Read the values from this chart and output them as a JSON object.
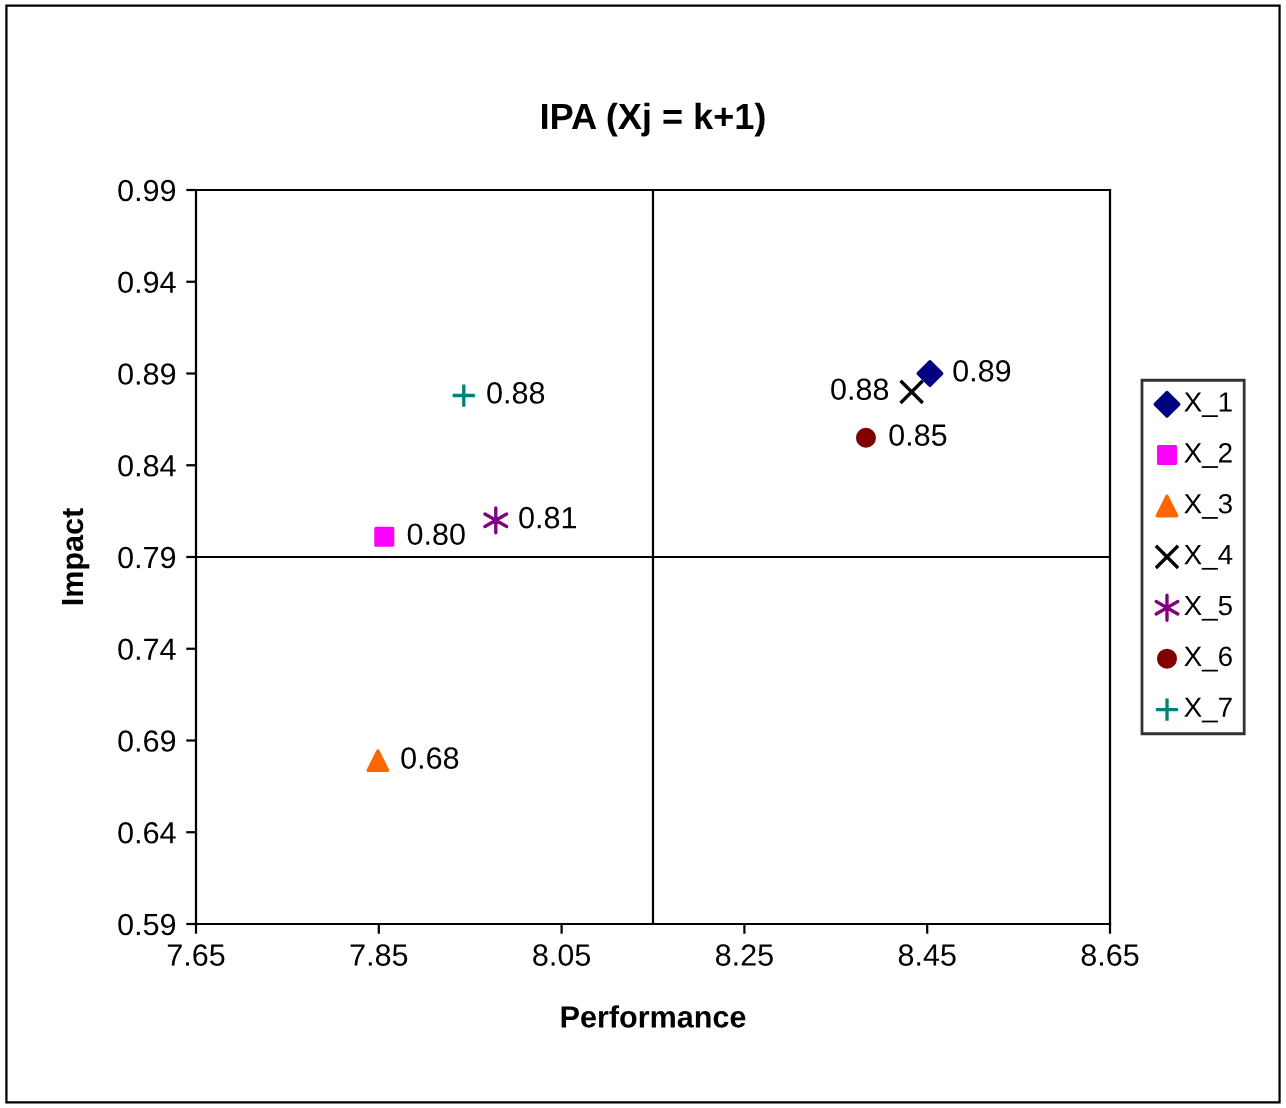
{
  "chart_data": {
    "type": "scatter",
    "title": "IPA (Xj = k+1)",
    "xlabel": "Performance",
    "ylabel": "Impact",
    "xlim": [
      7.65,
      8.65
    ],
    "xticks": [
      7.65,
      7.85,
      8.05,
      8.25,
      8.45,
      8.65
    ],
    "ylim": [
      0.59,
      0.99
    ],
    "yticks": [
      0.59,
      0.64,
      0.69,
      0.74,
      0.79,
      0.84,
      0.89,
      0.94,
      0.99
    ],
    "grid": false,
    "legend": "right",
    "ref_lines": [
      {
        "axis": "x",
        "value": 8.15,
        "color": "#000000"
      },
      {
        "axis": "y",
        "value": 0.79,
        "color": "#000000"
      }
    ],
    "series": [
      {
        "name": "X_1",
        "color": "#000080",
        "marker": "diamond",
        "x": [
          8.453
        ],
        "values": [
          0.89
        ],
        "value_labels": [
          "0.89"
        ]
      },
      {
        "name": "X_2",
        "color": "#ff00ff",
        "marker": "square",
        "x": [
          7.856
        ],
        "values": [
          0.801
        ],
        "value_labels": [
          "0.80"
        ]
      },
      {
        "name": "X_3",
        "color": "#ff6600",
        "marker": "triangle",
        "x": [
          7.849
        ],
        "values": [
          0.679
        ],
        "value_labels": [
          "0.68"
        ]
      },
      {
        "name": "X_4",
        "color": "#000000",
        "marker": "x",
        "x": [
          8.433
        ],
        "values": [
          0.88
        ],
        "value_labels": [
          "0.88"
        ]
      },
      {
        "name": "X_5",
        "color": "#800080",
        "marker": "cross",
        "x": [
          7.978
        ],
        "values": [
          0.81
        ],
        "value_labels": [
          "0.81"
        ]
      },
      {
        "name": "X_6",
        "color": "#800000",
        "marker": "circle",
        "x": [
          8.383
        ],
        "values": [
          0.855
        ],
        "value_labels": [
          "0.85"
        ]
      },
      {
        "name": "X_7",
        "color": "#008080",
        "marker": "plus",
        "x": [
          7.943
        ],
        "values": [
          0.878
        ],
        "value_labels": [
          "0.88"
        ]
      }
    ]
  }
}
